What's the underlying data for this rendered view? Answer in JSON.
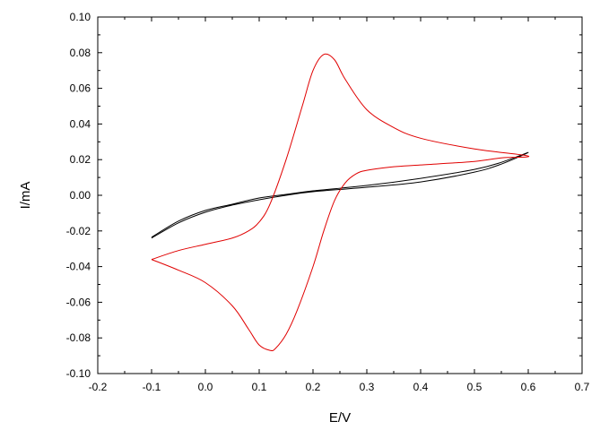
{
  "chart_data": {
    "type": "line",
    "title": "",
    "xlabel": "E/V",
    "ylabel": "I/mA",
    "xlim": [
      -0.2,
      0.7
    ],
    "ylim": [
      -0.1,
      0.1
    ],
    "xticks": [
      -0.2,
      -0.1,
      0.0,
      0.1,
      0.2,
      0.3,
      0.4,
      0.5,
      0.6,
      0.7
    ],
    "xtick_labels": [
      "-0.2",
      "-0.1",
      "0.0",
      "0.1",
      "0.2",
      "0.3",
      "0.4",
      "0.5",
      "0.6",
      "0.7"
    ],
    "yticks": [
      -0.1,
      -0.08,
      -0.06,
      -0.04,
      -0.02,
      0.0,
      0.02,
      0.04,
      0.06,
      0.08,
      0.1
    ],
    "ytick_labels": [
      "-0.10",
      "-0.08",
      "-0.06",
      "-0.04",
      "-0.02",
      "0.00",
      "0.02",
      "0.04",
      "0.06",
      "0.08",
      "0.10"
    ],
    "grid": false,
    "legend": "none",
    "series": [
      {
        "color": "#000000",
        "x": [
          -0.1,
          -0.05,
          0.0,
          0.05,
          0.1,
          0.15,
          0.2,
          0.3,
          0.4,
          0.5,
          0.55,
          0.6,
          0.55,
          0.5,
          0.4,
          0.3,
          0.2,
          0.15,
          0.1,
          0.05,
          0.0,
          -0.05,
          -0.1
        ],
        "y": [
          -0.024,
          -0.0155,
          -0.0095,
          -0.0055,
          -0.0025,
          0.0,
          0.002,
          0.0045,
          0.0075,
          0.013,
          0.0175,
          0.024,
          0.0185,
          0.0145,
          0.0095,
          0.0055,
          0.0025,
          0.0005,
          -0.0015,
          -0.005,
          -0.0085,
          -0.0145,
          -0.0235
        ]
      },
      {
        "color": "#e00000",
        "x": [
          -0.1,
          -0.05,
          0.0,
          0.05,
          0.08,
          0.1,
          0.12,
          0.15,
          0.18,
          0.2,
          0.22,
          0.24,
          0.26,
          0.3,
          0.35,
          0.4,
          0.5,
          0.6,
          0.55,
          0.5,
          0.4,
          0.35,
          0.3,
          0.28,
          0.26,
          0.24,
          0.22,
          0.2,
          0.17,
          0.15,
          0.13,
          0.12,
          0.1,
          0.08,
          0.05,
          0.0,
          -0.05,
          -0.1
        ],
        "y": [
          -0.036,
          -0.031,
          -0.0275,
          -0.024,
          -0.02,
          -0.015,
          -0.005,
          0.02,
          0.05,
          0.07,
          0.079,
          0.076,
          0.065,
          0.048,
          0.038,
          0.032,
          0.026,
          0.022,
          0.021,
          0.019,
          0.017,
          0.016,
          0.014,
          0.012,
          0.007,
          -0.003,
          -0.02,
          -0.04,
          -0.065,
          -0.078,
          -0.086,
          -0.087,
          -0.084,
          -0.075,
          -0.062,
          -0.049,
          -0.042,
          -0.036
        ]
      }
    ]
  }
}
